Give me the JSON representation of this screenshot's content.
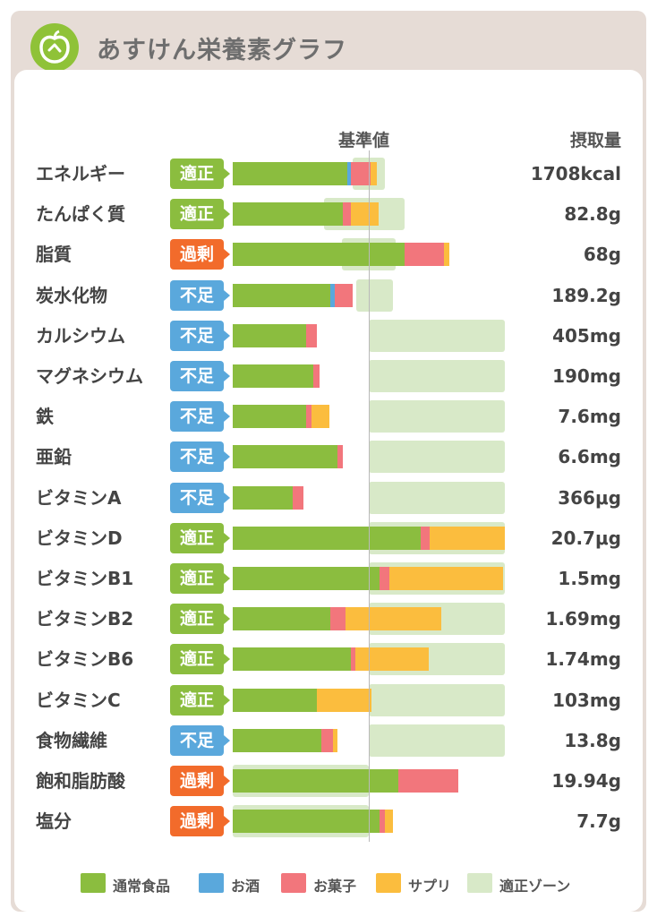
{
  "app": {
    "title": "あすけん栄養素グラフ",
    "logo_icon": "apple-icon"
  },
  "columns": {
    "baseline": "基準値",
    "intake": "摂取量"
  },
  "colors": {
    "food": "#8bbd3f",
    "alcohol": "#5aa8dc",
    "snack": "#f2767c",
    "supplement": "#fbbd3e",
    "zone": "#d8e9c8",
    "adequate": "#8bbd3f",
    "deficient": "#5aa8dc",
    "excess": "#f26b2b"
  },
  "status_labels": {
    "adequate": "適正",
    "deficient": "不足",
    "excess": "過剰"
  },
  "legend": [
    {
      "key": "food",
      "label": "通常食品"
    },
    {
      "key": "alcohol",
      "label": "お酒"
    },
    {
      "key": "snack",
      "label": "お菓子"
    },
    {
      "key": "supplement",
      "label": "サプリ"
    },
    {
      "key": "zone",
      "label": "適正ゾーン"
    }
  ],
  "chart_data": {
    "type": "bar",
    "stacked": true,
    "orientation": "horizontal",
    "unit_note": "percent of reference value (基準値 = 100)",
    "reference": 100,
    "series": [
      {
        "name": "通常食品",
        "key": "food"
      },
      {
        "name": "お酒",
        "key": "alcohol"
      },
      {
        "name": "お菓子",
        "key": "snack"
      },
      {
        "name": "サプリ",
        "key": "supplement"
      }
    ],
    "rows": [
      {
        "label": "エネルギー",
        "status": "adequate",
        "amount": "1708kcal",
        "food": 84,
        "alcohol": 3,
        "snack": 14,
        "supplement": 5,
        "zone": [
          88,
          112
        ]
      },
      {
        "label": "たんぱく質",
        "status": "adequate",
        "amount": "82.8g",
        "food": 81,
        "alcohol": 0,
        "snack": 6,
        "supplement": 20,
        "zone": [
          67,
          126
        ]
      },
      {
        "label": "脂質",
        "status": "excess",
        "amount": "68g",
        "food": 126,
        "alcohol": 0,
        "snack": 29,
        "supplement": 4,
        "zone": [
          80,
          120
        ]
      },
      {
        "label": "炭水化物",
        "status": "deficient",
        "amount": "189.2g",
        "food": 72,
        "alcohol": 3,
        "snack": 13,
        "supplement": 0,
        "zone": [
          91,
          118
        ]
      },
      {
        "label": "カルシウム",
        "status": "deficient",
        "amount": "405mg",
        "food": 54,
        "alcohol": 0,
        "snack": 8,
        "supplement": 0,
        "zone": [
          100,
          200
        ]
      },
      {
        "label": "マグネシウム",
        "status": "deficient",
        "amount": "190mg",
        "food": 59,
        "alcohol": 0,
        "snack": 5,
        "supplement": 0,
        "zone": [
          100,
          200
        ]
      },
      {
        "label": "鉄",
        "status": "deficient",
        "amount": "7.6mg",
        "food": 54,
        "alcohol": 0,
        "snack": 4,
        "supplement": 13,
        "zone": [
          100,
          200
        ]
      },
      {
        "label": "亜鉛",
        "status": "deficient",
        "amount": "6.6mg",
        "food": 77,
        "alcohol": 0,
        "snack": 4,
        "supplement": 0,
        "zone": [
          100,
          200
        ]
      },
      {
        "label": "ビタミンA",
        "status": "deficient",
        "amount": "366μg",
        "food": 44,
        "alcohol": 0,
        "snack": 8,
        "supplement": 0,
        "zone": [
          100,
          200
        ]
      },
      {
        "label": "ビタミンD",
        "status": "adequate",
        "amount": "20.7μg",
        "food": 138,
        "alcohol": 0,
        "snack": 7,
        "supplement": 55,
        "zone": [
          100,
          200
        ]
      },
      {
        "label": "ビタミンB1",
        "status": "adequate",
        "amount": "1.5mg",
        "food": 108,
        "alcohol": 0,
        "snack": 7,
        "supplement": 84,
        "zone": [
          100,
          200
        ]
      },
      {
        "label": "ビタミンB2",
        "status": "adequate",
        "amount": "1.69mg",
        "food": 72,
        "alcohol": 0,
        "snack": 11,
        "supplement": 70,
        "zone": [
          100,
          200
        ]
      },
      {
        "label": "ビタミンB6",
        "status": "adequate",
        "amount": "1.74mg",
        "food": 87,
        "alcohol": 0,
        "snack": 3,
        "supplement": 54,
        "zone": [
          100,
          200
        ]
      },
      {
        "label": "ビタミンC",
        "status": "adequate",
        "amount": "103mg",
        "food": 62,
        "alcohol": 0,
        "snack": 0,
        "supplement": 40,
        "zone": [
          100,
          200
        ]
      },
      {
        "label": "食物繊維",
        "status": "deficient",
        "amount": "13.8g",
        "food": 65,
        "alcohol": 0,
        "snack": 9,
        "supplement": 3,
        "zone": [
          100,
          200
        ]
      },
      {
        "label": "飽和脂肪酸",
        "status": "excess",
        "amount": "19.94g",
        "food": 122,
        "alcohol": 0,
        "snack": 44,
        "supplement": 0,
        "zone": [
          0,
          100
        ]
      },
      {
        "label": "塩分",
        "status": "excess",
        "amount": "7.7g",
        "food": 108,
        "alcohol": 0,
        "snack": 4,
        "supplement": 6,
        "zone": [
          0,
          100
        ]
      }
    ]
  }
}
